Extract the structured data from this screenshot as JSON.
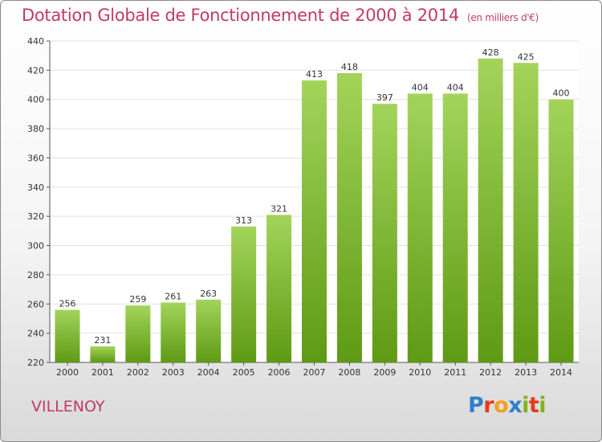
{
  "title": "Dotation Globale de Fonctionnement de 2000 à 2014",
  "unit": "(en milliers d'€)",
  "commune": "VILLENOY",
  "logo": {
    "letters": [
      "P",
      "r",
      "o",
      "x",
      "i",
      "t",
      "i"
    ],
    "colors": [
      "#2f80c9",
      "#e63a1e",
      "#f0a21a",
      "#2f80c9",
      "#7cb51f",
      "#e63a1e",
      "#7cb51f"
    ]
  },
  "colors": {
    "bar": "#7fbf2a",
    "bar_light": "#a3d45a",
    "bar_dark": "#5e9a14",
    "title": "#c03a6a",
    "grid": "#e0e0e0"
  },
  "chart_data": {
    "type": "bar",
    "title": "Dotation Globale de Fonctionnement de 2000 à 2014",
    "categories": [
      "2000",
      "2001",
      "2002",
      "2003",
      "2004",
      "2005",
      "2006",
      "2007",
      "2008",
      "2009",
      "2010",
      "2011",
      "2012",
      "2013",
      "2014"
    ],
    "values": [
      256,
      231,
      259,
      261,
      263,
      313,
      321,
      413,
      418,
      397,
      404,
      404,
      428,
      425,
      400
    ],
    "ylim": [
      220,
      440
    ],
    "yticks": [
      220,
      240,
      260,
      280,
      300,
      320,
      340,
      360,
      380,
      400,
      420,
      440
    ],
    "xlabel": "",
    "ylabel": "",
    "grid": true
  }
}
